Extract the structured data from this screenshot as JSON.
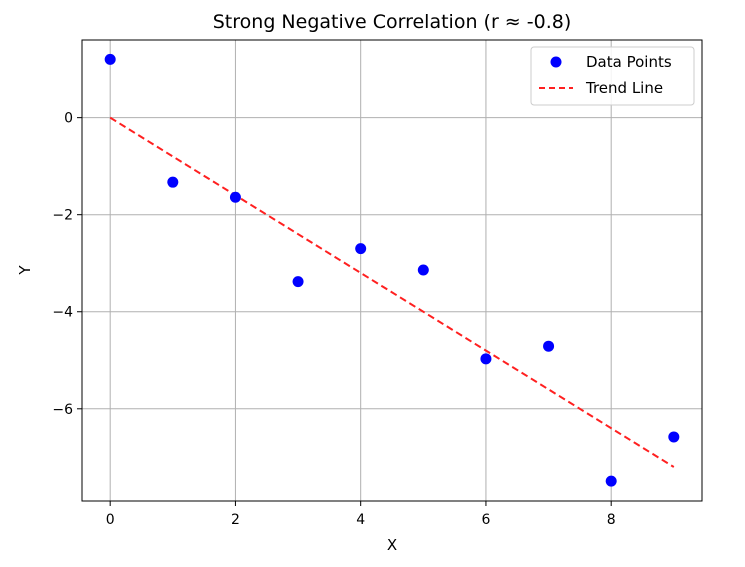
{
  "chart_data": {
    "type": "scatter",
    "title": "Strong Negative Correlation (r ≈ -0.8)",
    "xlabel": "X",
    "ylabel": "Y",
    "xlim": [
      -0.45,
      9.45
    ],
    "ylim": [
      -7.9,
      1.6
    ],
    "xticks": [
      0,
      2,
      4,
      6,
      8
    ],
    "yticks": [
      0,
      -2,
      -4,
      -6
    ],
    "grid": true,
    "legend": {
      "placement": "top-right",
      "entries": [
        {
          "label": "Data Points",
          "kind": "marker",
          "color": "#0000ff"
        },
        {
          "label": "Trend Line",
          "kind": "dashed-line",
          "color": "#ff2020"
        }
      ]
    },
    "series": [
      {
        "name": "Data Points",
        "color": "#0000ff",
        "x": [
          0,
          1,
          2,
          3,
          4,
          5,
          6,
          7,
          8,
          9
        ],
        "y": [
          1.2,
          -1.33,
          -1.64,
          -3.38,
          -2.7,
          -3.14,
          -4.97,
          -4.71,
          -7.49,
          -6.58
        ]
      },
      {
        "name": "Trend Line",
        "color": "#ff2020",
        "x": [
          0,
          9
        ],
        "y": [
          0,
          -7.2
        ]
      }
    ]
  }
}
